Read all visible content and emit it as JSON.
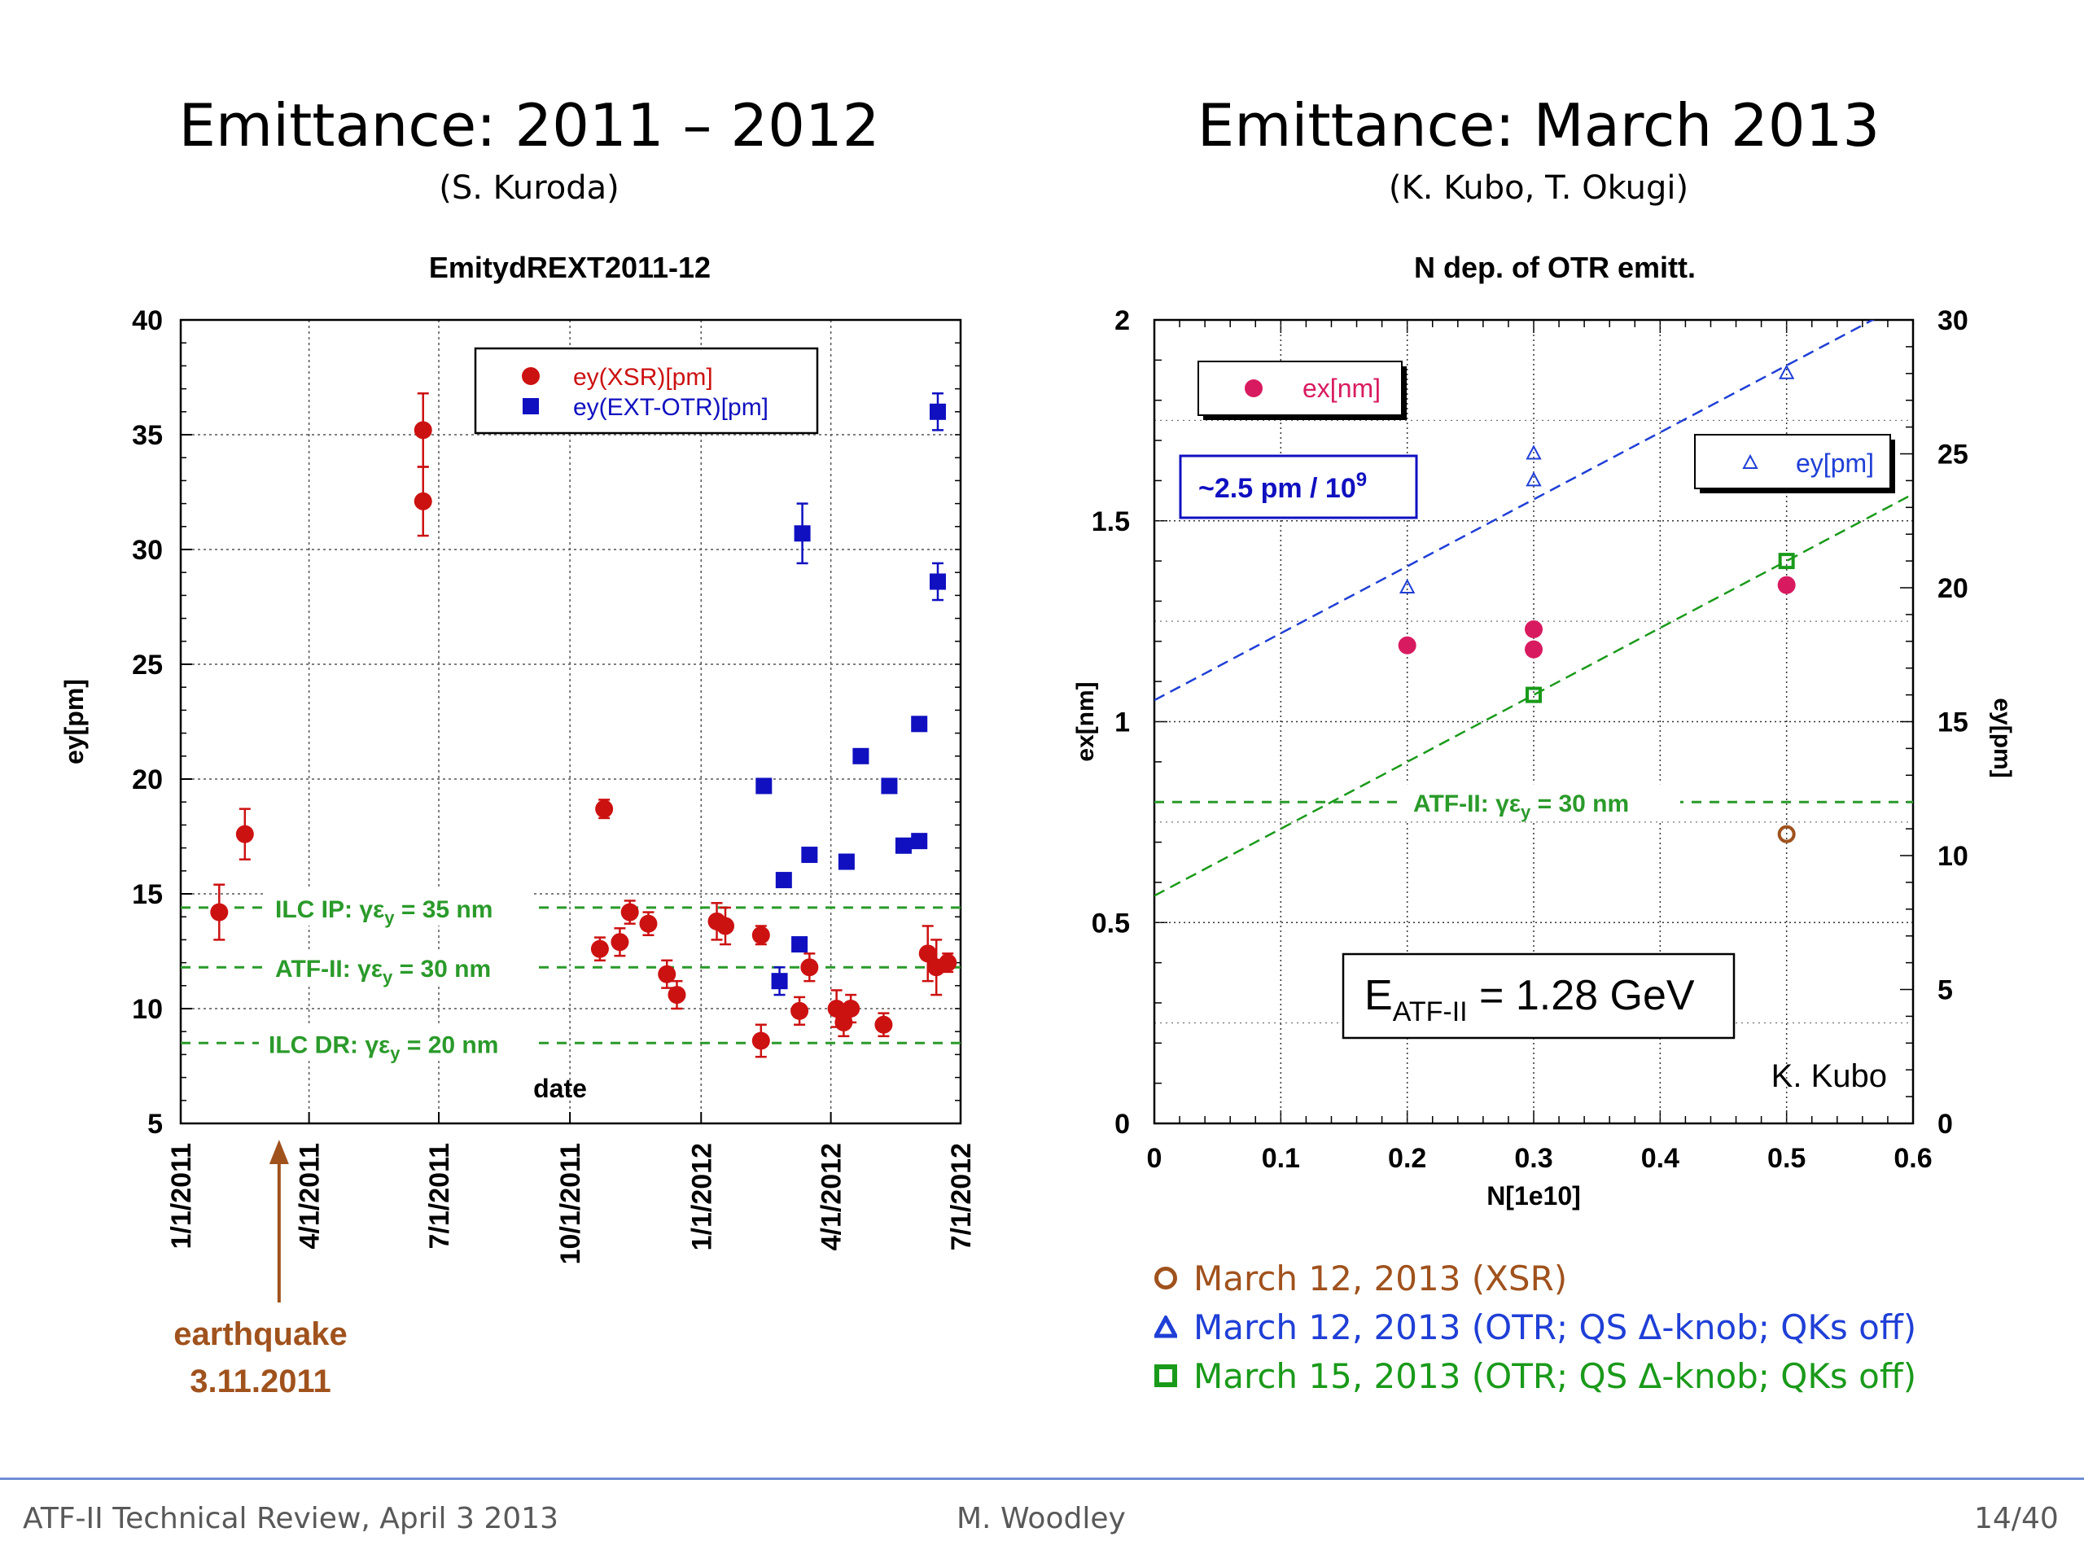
{
  "slide": {
    "left_title": "Emittance: 2011 – 2012",
    "left_subtitle": "(S. Kuroda)",
    "right_title": "Emittance: March 2013",
    "right_subtitle": "(K. Kubo, T. Okugi)",
    "earthquake_label_1": "earthquake",
    "earthquake_label_2": "3.11.2011",
    "footer_left": "ATF-II Technical Review, April 3 2013",
    "footer_center": "M. Woodley",
    "footer_right": "14/40",
    "right_legend": [
      {
        "marker": "circle",
        "color": "#a0521d",
        "label": "March 12, 2013 (XSR)"
      },
      {
        "marker": "triangle",
        "color": "#1f3fd6",
        "label": "March 12, 2013 (OTR; QS Δ-knob; QKs off)"
      },
      {
        "marker": "square",
        "color": "#1a9a1a",
        "label": "March 15, 2013 (OTR; QS Δ-knob; QKs off)"
      }
    ],
    "colors": {
      "accent_red": "#cc1111",
      "accent_blue": "#1010c0",
      "accent_green": "#2a9a2a",
      "accent_brown": "#a0521d",
      "footer_line": "#6f8fd6"
    }
  },
  "chart_data": [
    {
      "type": "scatter",
      "title": "EmitydREXT2011-12",
      "xlabel": "date",
      "ylabel": "ey[pm]",
      "x_ticks": [
        "1/1/2011",
        "4/1/2011",
        "7/1/2011",
        "10/1/2011",
        "1/1/2012",
        "4/1/2012",
        "7/1/2012"
      ],
      "x_range": [
        "2011-01-01",
        "2012-07-01"
      ],
      "ylim": [
        5,
        40
      ],
      "y_ticks": [
        5,
        10,
        15,
        20,
        25,
        30,
        35,
        40
      ],
      "grid": true,
      "legend_position": "top-right",
      "series": [
        {
          "name": "ey(XSR)[pm]",
          "marker": "circle",
          "color": "#cc1111",
          "points": [
            {
              "x": "2011-01-28",
              "y": 14.2,
              "err": 1.2
            },
            {
              "x": "2011-02-15",
              "y": 17.6,
              "err": 1.1
            },
            {
              "x": "2011-06-20",
              "y": 35.2,
              "err": 1.6
            },
            {
              "x": "2011-06-20",
              "y": 32.1,
              "err": 1.5
            },
            {
              "x": "2011-10-22",
              "y": 12.6,
              "err": 0.5
            },
            {
              "x": "2011-10-25",
              "y": 18.7,
              "err": 0.4
            },
            {
              "x": "2011-11-05",
              "y": 12.9,
              "err": 0.6
            },
            {
              "x": "2011-11-12",
              "y": 14.2,
              "err": 0.5
            },
            {
              "x": "2011-11-25",
              "y": 13.7,
              "err": 0.5
            },
            {
              "x": "2011-12-08",
              "y": 11.5,
              "err": 0.6
            },
            {
              "x": "2011-12-15",
              "y": 10.6,
              "err": 0.6
            },
            {
              "x": "2012-01-12",
              "y": 13.8,
              "err": 0.8
            },
            {
              "x": "2012-01-18",
              "y": 13.6,
              "err": 0.8
            },
            {
              "x": "2012-02-12",
              "y": 8.6,
              "err": 0.7
            },
            {
              "x": "2012-02-12",
              "y": 13.2,
              "err": 0.4
            },
            {
              "x": "2012-03-10",
              "y": 9.9,
              "err": 0.6
            },
            {
              "x": "2012-03-17",
              "y": 11.8,
              "err": 0.6
            },
            {
              "x": "2012-04-05",
              "y": 10.0,
              "err": 0.8
            },
            {
              "x": "2012-04-10",
              "y": 9.4,
              "err": 0.6
            },
            {
              "x": "2012-04-15",
              "y": 10.0,
              "err": 0.6
            },
            {
              "x": "2012-05-08",
              "y": 9.3,
              "err": 0.5
            },
            {
              "x": "2012-06-08",
              "y": 12.4,
              "err": 1.2
            },
            {
              "x": "2012-06-14",
              "y": 11.8,
              "err": 1.2
            },
            {
              "x": "2012-06-22",
              "y": 12.0,
              "err": 0.4
            }
          ]
        },
        {
          "name": "ey(EXT-OTR)[pm]",
          "marker": "square",
          "color": "#1010c0",
          "points": [
            {
              "x": "2012-02-14",
              "y": 19.7,
              "err": 0
            },
            {
              "x": "2012-02-25",
              "y": 11.2,
              "err": 0.6
            },
            {
              "x": "2012-02-28",
              "y": 15.6,
              "err": 0
            },
            {
              "x": "2012-03-10",
              "y": 12.8,
              "err": 0
            },
            {
              "x": "2012-03-12",
              "y": 30.7,
              "err": 1.3
            },
            {
              "x": "2012-03-17",
              "y": 16.7,
              "err": 0
            },
            {
              "x": "2012-04-12",
              "y": 16.4,
              "err": 0
            },
            {
              "x": "2012-04-22",
              "y": 21.0,
              "err": 0
            },
            {
              "x": "2012-05-12",
              "y": 19.7,
              "err": 0
            },
            {
              "x": "2012-05-22",
              "y": 17.1,
              "err": 0
            },
            {
              "x": "2012-06-02",
              "y": 17.3,
              "err": 0
            },
            {
              "x": "2012-06-02",
              "y": 22.4,
              "err": 0
            },
            {
              "x": "2012-06-15",
              "y": 36.0,
              "err": 0.8
            },
            {
              "x": "2012-06-15",
              "y": 28.6,
              "err": 0.8
            }
          ]
        }
      ],
      "reference_lines": [
        {
          "y": 14.4,
          "label": "ILC  IP:  γε",
          "sub": "y",
          "label_tail": " = 35 nm",
          "color": "#2a9a2a"
        },
        {
          "y": 11.8,
          "label": "ATF-II:  γε",
          "sub": "y",
          "label_tail": " = 30 nm",
          "color": "#2a9a2a"
        },
        {
          "y": 8.5,
          "label": "ILC  DR:  γε",
          "sub": "y",
          "label_tail": " = 20 nm",
          "color": "#2a9a2a"
        }
      ]
    },
    {
      "type": "scatter",
      "title": "N dep. of OTR emitt.",
      "xlabel": "N[1e10]",
      "ylabel": "ex[nm]",
      "y2label": "ey[pm]",
      "xlim": [
        0,
        0.6
      ],
      "x_ticks": [
        0,
        0.1,
        0.2,
        0.3,
        0.4,
        0.5,
        0.6
      ],
      "ylim": [
        0,
        2
      ],
      "y_ticks": [
        0,
        0.5,
        1,
        1.5,
        2
      ],
      "y2lim": [
        0,
        30
      ],
      "y2_ticks": [
        0,
        5,
        10,
        15,
        20,
        25,
        30
      ],
      "grid": true,
      "legend_position": "top-left and top-right",
      "series": [
        {
          "name": "ex[nm]",
          "marker": "circle",
          "color": "#d81b60",
          "axis": "y",
          "x": [
            0.2,
            0.3,
            0.3,
            0.5
          ],
          "y": [
            1.19,
            1.23,
            1.18,
            1.34
          ]
        },
        {
          "name": "ey[pm]",
          "marker": "triangle",
          "color": "#1f3fd6",
          "axis": "y2",
          "x": [
            0.2,
            0.3,
            0.3,
            0.5
          ],
          "y": [
            20.0,
            24.0,
            25.0,
            28.0
          ]
        },
        {
          "name": "",
          "marker": "square",
          "color": "#1a9a1a",
          "axis": "y2",
          "x": [
            0.3,
            0.5
          ],
          "y": [
            16.0,
            21.0
          ]
        },
        {
          "name": "",
          "marker": "circle-open",
          "color": "#a0521d",
          "axis": "y2",
          "x": [
            0.5
          ],
          "y": [
            10.8
          ]
        }
      ],
      "fit_lines": [
        {
          "axis": "y2",
          "color": "#1f3fd6",
          "x": [
            0,
            0.6
          ],
          "y": [
            15.8,
            30.8
          ]
        },
        {
          "axis": "y2",
          "color": "#1a9a1a",
          "x": [
            0,
            0.6
          ],
          "y": [
            8.5,
            23.5
          ]
        }
      ],
      "reference_lines": [
        {
          "axis": "y2",
          "y": 12,
          "label": "ATF-II:  γε",
          "sub": "y",
          "label_tail": " = 30 nm",
          "color": "#2a9a2a"
        }
      ],
      "annotations": {
        "slope_box": "~2.5 pm / 10",
        "slope_exp": "9",
        "energy_main": "E",
        "energy_sub": "ATF-II",
        "energy_tail": " = 1.28 GeV",
        "author": "K. Kubo"
      }
    }
  ]
}
